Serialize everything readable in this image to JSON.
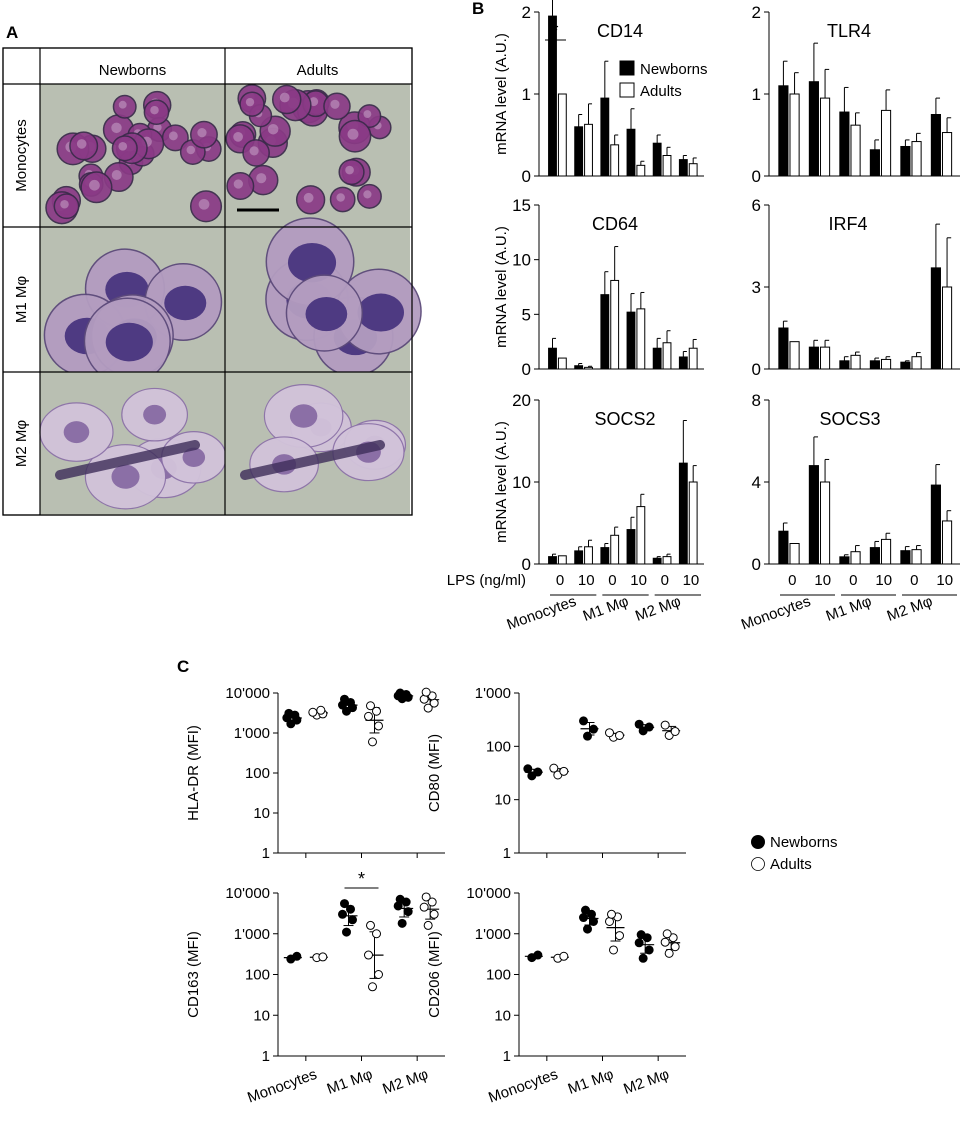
{
  "panels": {
    "A": "A",
    "B": "B",
    "C": "C"
  },
  "micrograph": {
    "columns": [
      "Newborns",
      "Adults"
    ],
    "rows": [
      "Monocytes",
      "M1 Mφ",
      "M2 Mφ"
    ]
  },
  "colors": {
    "newborns": "#000000",
    "adults": "#ffffff",
    "monocyte_cell": "#8a3a86",
    "m1_cell": "#4e3a82",
    "m2_cell": "#8b6fa6",
    "background_tint": "#b9bfb2"
  },
  "labels": {
    "mrna_ylabel": "mRNA level (A.U.)",
    "lps_label": "LPS (ng/ml)",
    "lps_doses": [
      "0",
      "10"
    ],
    "groups": [
      "Monocytes",
      "M1 Mφ",
      "M2 Mφ"
    ],
    "newborns": "Newborns",
    "adults": "Adults",
    "significance": "*"
  },
  "chart_data": [
    {
      "type": "bar",
      "title": "CD14",
      "ylabel": "mRNA level (A.U.)",
      "yticks": [
        "0",
        "1",
        "2"
      ],
      "ylim": [
        0,
        2
      ],
      "categories": [
        "Monocytes 0",
        "Monocytes 10",
        "M1 Mφ 0",
        "M1 Mφ 10",
        "M2 Mφ 0",
        "M2 Mφ 10"
      ],
      "series": [
        {
          "name": "Newborns",
          "values": [
            1.95,
            0.6,
            0.95,
            0.57,
            0.4,
            0.2
          ],
          "errors": [
            0.4,
            0.15,
            0.45,
            0.25,
            0.1,
            0.05
          ]
        },
        {
          "name": "Adults",
          "values": [
            1.0,
            0.63,
            0.38,
            0.13,
            0.25,
            0.15
          ],
          "errors": [
            0.0,
            0.25,
            0.12,
            0.05,
            0.1,
            0.07
          ]
        }
      ],
      "legend": [
        "Newborns",
        "Adults"
      ],
      "significance": [
        "Monocytes 0"
      ]
    },
    {
      "type": "bar",
      "title": "TLR4",
      "ylabel": "",
      "yticks": [
        "0",
        "1",
        "2"
      ],
      "ylim": [
        0,
        2
      ],
      "categories": [
        "Monocytes 0",
        "Monocytes 10",
        "M1 Mφ 0",
        "M1 Mφ 10",
        "M2 Mφ 0",
        "M2 Mφ 10"
      ],
      "series": [
        {
          "name": "Newborns",
          "values": [
            1.1,
            1.15,
            0.78,
            0.32,
            0.36,
            0.75
          ],
          "errors": [
            0.3,
            0.47,
            0.3,
            0.12,
            0.08,
            0.2
          ]
        },
        {
          "name": "Adults",
          "values": [
            1.0,
            0.95,
            0.62,
            0.8,
            0.42,
            0.53
          ],
          "errors": [
            0.26,
            0.35,
            0.15,
            0.25,
            0.1,
            0.18
          ]
        }
      ]
    },
    {
      "type": "bar",
      "title": "CD64",
      "ylabel": "mRNA level (A.U.)",
      "yticks": [
        "0",
        "5",
        "10",
        "15"
      ],
      "ylim": [
        0,
        15
      ],
      "categories": [
        "Monocytes 0",
        "Monocytes 10",
        "M1 Mφ 0",
        "M1 Mφ 10",
        "M2 Mφ 0",
        "M2 Mφ 10"
      ],
      "series": [
        {
          "name": "Newborns",
          "values": [
            1.9,
            0.3,
            6.8,
            5.2,
            1.9,
            1.1
          ],
          "errors": [
            0.9,
            0.2,
            2.1,
            1.7,
            0.9,
            0.5
          ]
        },
        {
          "name": "Adults",
          "values": [
            1.0,
            0.15,
            8.1,
            5.5,
            2.4,
            1.9
          ],
          "errors": [
            0.0,
            0.1,
            3.1,
            1.5,
            1.1,
            0.8
          ]
        }
      ]
    },
    {
      "type": "bar",
      "title": "IRF4",
      "ylabel": "",
      "yticks": [
        "0",
        "3",
        "6"
      ],
      "ylim": [
        0,
        6
      ],
      "categories": [
        "Monocytes 0",
        "Monocytes 10",
        "M1 Mφ 0",
        "M1 Mφ 10",
        "M2 Mφ 0",
        "M2 Mφ 10"
      ],
      "series": [
        {
          "name": "Newborns",
          "values": [
            1.5,
            0.8,
            0.3,
            0.3,
            0.25,
            3.7
          ],
          "errors": [
            0.25,
            0.25,
            0.15,
            0.1,
            0.05,
            1.6
          ]
        },
        {
          "name": "Adults",
          "values": [
            1.0,
            0.8,
            0.5,
            0.35,
            0.45,
            3.0
          ],
          "errors": [
            0.0,
            0.25,
            0.12,
            0.1,
            0.15,
            1.8
          ]
        }
      ]
    },
    {
      "type": "bar",
      "title": "SOCS2",
      "ylabel": "mRNA level (A.U.)",
      "yticks": [
        "0",
        "10",
        "20"
      ],
      "ylim": [
        0,
        20
      ],
      "categories": [
        "Monocytes 0",
        "Monocytes 10",
        "M1 Mφ 0",
        "M1 Mφ 10",
        "M2 Mφ 0",
        "M2 Mφ 10"
      ],
      "series": [
        {
          "name": "Newborns",
          "values": [
            0.9,
            1.6,
            2.0,
            4.2,
            0.7,
            12.3
          ],
          "errors": [
            0.3,
            0.5,
            0.5,
            1.5,
            0.2,
            5.2
          ]
        },
        {
          "name": "Adults",
          "values": [
            1.0,
            2.1,
            3.5,
            7.0,
            0.9,
            10.0
          ],
          "errors": [
            0.0,
            0.8,
            1.0,
            1.5,
            0.3,
            2.0
          ]
        }
      ]
    },
    {
      "type": "bar",
      "title": "SOCS3",
      "ylabel": "",
      "yticks": [
        "0",
        "4",
        "8"
      ],
      "ylim": [
        0,
        8
      ],
      "categories": [
        "Monocytes 0",
        "Monocytes 10",
        "M1 Mφ 0",
        "M1 Mφ 10",
        "M2 Mφ 0",
        "M2 Mφ 10"
      ],
      "series": [
        {
          "name": "Newborns",
          "values": [
            1.6,
            4.8,
            0.35,
            0.8,
            0.65,
            3.85
          ],
          "errors": [
            0.4,
            1.4,
            0.1,
            0.3,
            0.2,
            1.0
          ]
        },
        {
          "name": "Adults",
          "values": [
            1.0,
            4.0,
            0.6,
            1.2,
            0.7,
            2.1
          ],
          "errors": [
            0.0,
            1.1,
            0.3,
            0.3,
            0.2,
            0.5
          ]
        }
      ]
    },
    {
      "type": "scatter",
      "ylabel": "HLA-DR (MFI)",
      "yscale": "log",
      "ylim": [
        1,
        10000
      ],
      "yticks": [
        "1",
        "10",
        "100",
        "1'000",
        "10'000"
      ],
      "categories": [
        "Monocytes",
        "M1 Mφ",
        "M2 Mφ"
      ],
      "series": [
        {
          "name": "Newborns",
          "points": [
            [
              1700,
              2100,
              2400,
              2800,
              3100
            ],
            [
              3500,
              4300,
              5000,
              5800,
              7000
            ],
            [
              7200,
              7800,
              8500,
              9200,
              10000
            ]
          ]
        },
        {
          "name": "Adults",
          "points": [
            [
              2800,
              3000,
              3300,
              3700
            ],
            [
              600,
              1500,
              2600,
              3500,
              4800
            ],
            [
              4200,
              5600,
              7000,
              8500,
              10500
            ]
          ]
        }
      ]
    },
    {
      "type": "scatter",
      "ylabel": "CD80 (MFI)",
      "yscale": "log",
      "ylim": [
        1,
        1000
      ],
      "yticks": [
        "1",
        "10",
        "100",
        "1'000"
      ],
      "categories": [
        "Monocytes",
        "M1 Mφ",
        "M2 Mφ"
      ],
      "series": [
        {
          "name": "Newborns",
          "points": [
            [
              28,
              33,
              38
            ],
            [
              155,
              210,
              300
            ],
            [
              195,
              230,
              260
            ]
          ]
        },
        {
          "name": "Adults",
          "points": [
            [
              29,
              34,
              39
            ],
            [
              148,
              160,
              180
            ],
            [
              160,
              190,
              250
            ]
          ]
        }
      ]
    },
    {
      "type": "scatter",
      "ylabel": "CD163 (MFI)",
      "yscale": "log",
      "ylim": [
        1,
        10000
      ],
      "yticks": [
        "1",
        "10",
        "100",
        "1'000",
        "10'000"
      ],
      "categories": [
        "Monocytes",
        "M1 Mφ",
        "M2 Mφ"
      ],
      "series": [
        {
          "name": "Newborns",
          "points": [
            [
              240,
              280
            ],
            [
              1100,
              2200,
              3000,
              4000,
              5500
            ],
            [
              1800,
              3500,
              4800,
              6000,
              7000
            ]
          ]
        },
        {
          "name": "Adults",
          "points": [
            [
              260,
              270
            ],
            [
              50,
              100,
              300,
              1000,
              1600
            ],
            [
              1600,
              3000,
              4500,
              6000,
              8000
            ]
          ]
        }
      ],
      "significance": [
        "M1 Mφ"
      ]
    },
    {
      "type": "scatter",
      "ylabel": "CD206 (MFI)",
      "yscale": "log",
      "ylim": [
        1,
        10000
      ],
      "yticks": [
        "1",
        "10",
        "100",
        "1'000",
        "10'000"
      ],
      "categories": [
        "Monocytes",
        "M1 Mφ",
        "M2 Mφ"
      ],
      "series": [
        {
          "name": "Newborns",
          "points": [
            [
              260,
              300
            ],
            [
              1300,
              2000,
              2500,
              3000,
              3800
            ],
            [
              250,
              400,
              600,
              800,
              950
            ]
          ]
        },
        {
          "name": "Adults",
          "points": [
            [
              250,
              280
            ],
            [
              400,
              900,
              2000,
              2600,
              3000
            ],
            [
              330,
              480,
              620,
              800,
              1000
            ]
          ]
        }
      ]
    }
  ]
}
